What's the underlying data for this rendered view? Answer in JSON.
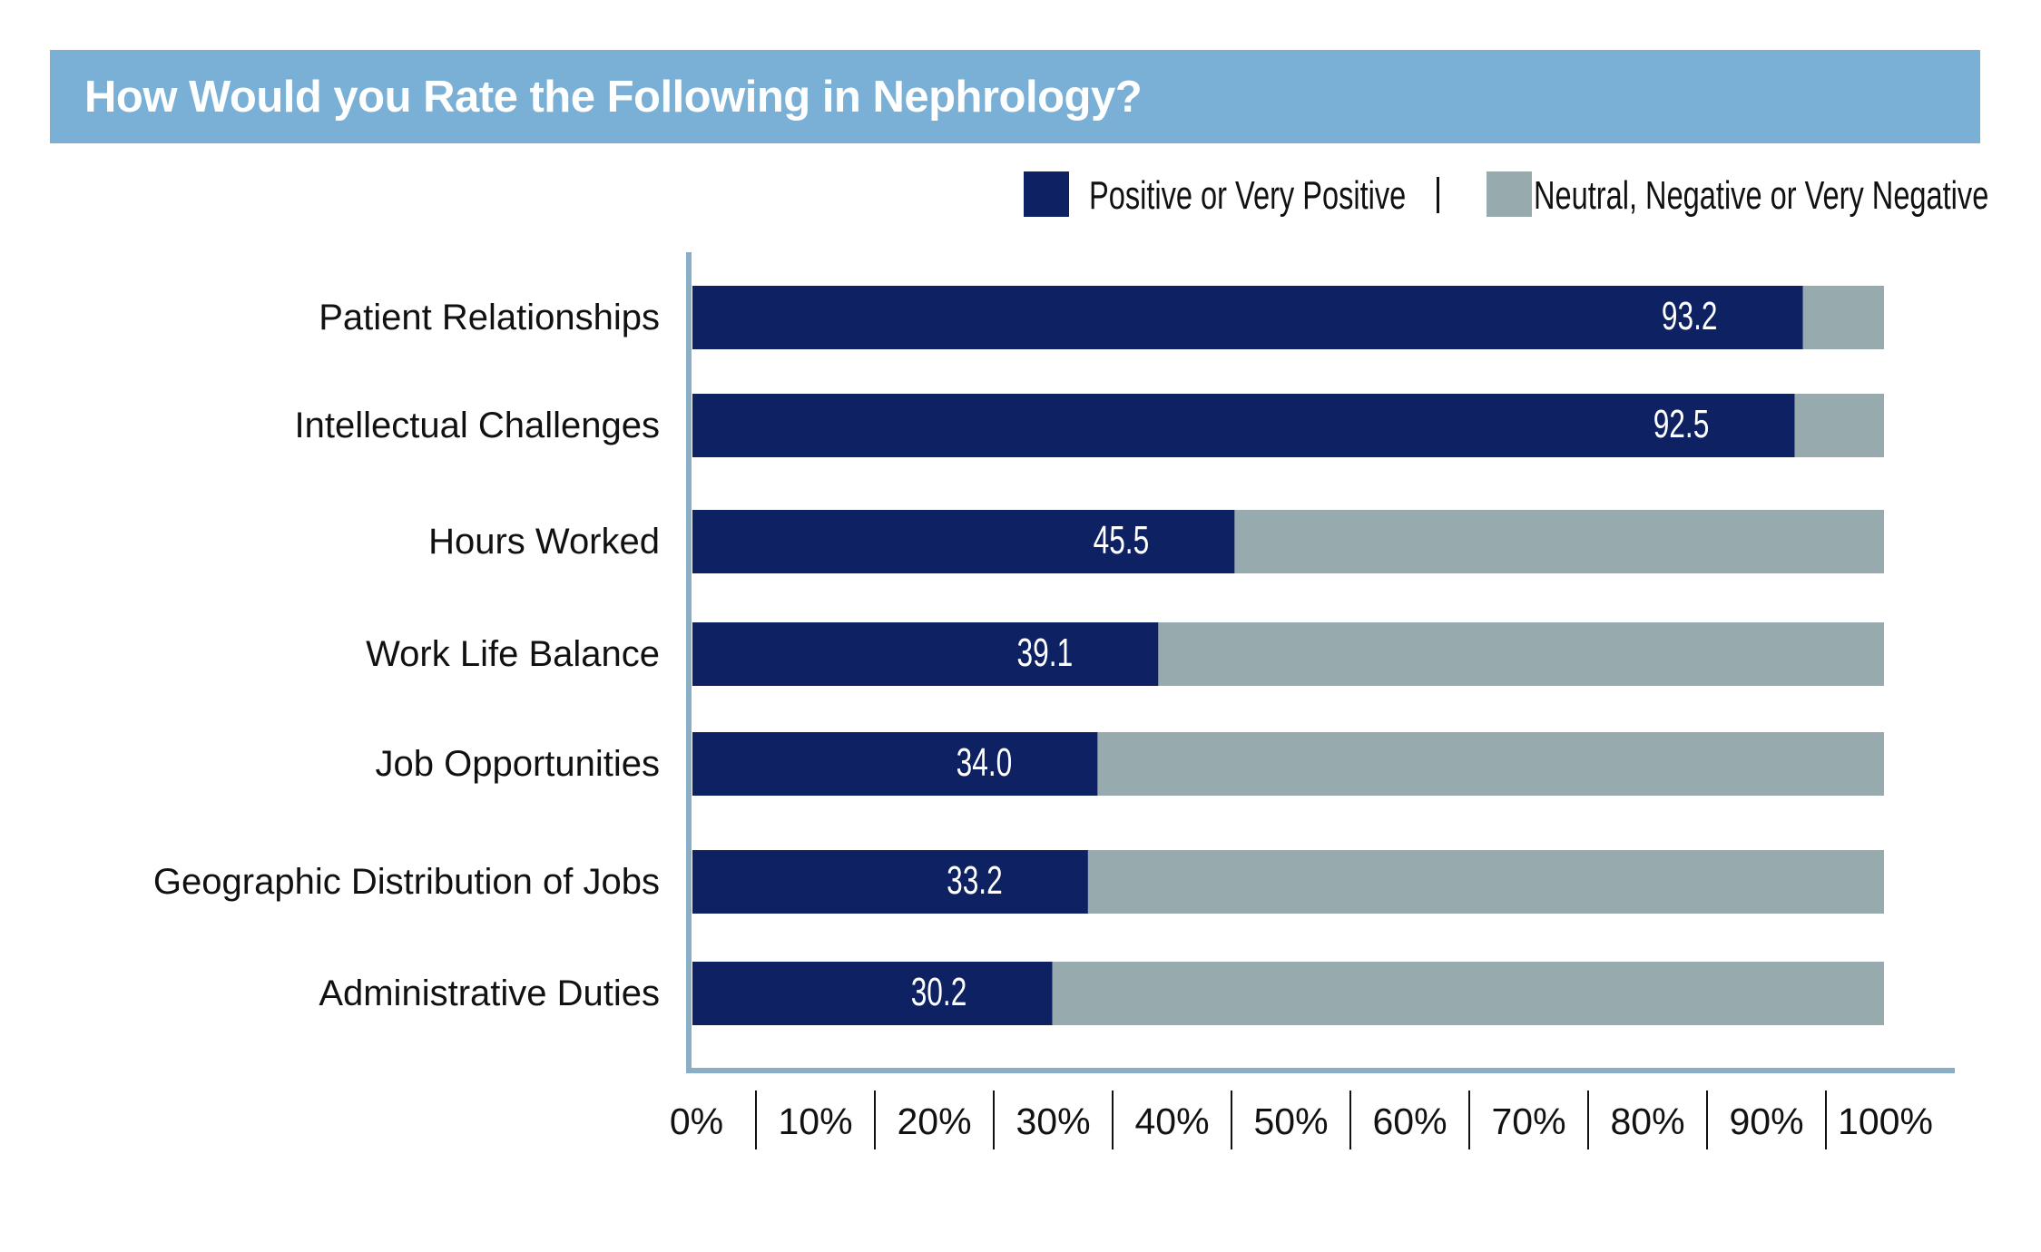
{
  "title": "How Would you Rate the Following in Nephrology?",
  "colors": {
    "title_bar": "#7AAFD6",
    "positive": "#0E2263",
    "negative": "#97AAAD",
    "axis": "#8AAEC6"
  },
  "legend": {
    "items": [
      {
        "label": "Positive or Very Positive",
        "color": "#0E2263"
      },
      {
        "label": "Neutral, Negative or Very Negative",
        "color": "#97AAAD"
      }
    ],
    "separator": "|"
  },
  "chart_data": {
    "type": "bar",
    "orientation": "horizontal",
    "stacked": true,
    "title": "How Would you Rate the Following in Nephrology?",
    "xlabel": "",
    "ylabel": "",
    "xlim": [
      0,
      100
    ],
    "grid": false,
    "legend_position": "top-right",
    "categories": [
      "Patient Relationships",
      "Intellectual Challenges",
      "Hours Worked",
      "Work Life Balance",
      "Job Opportunities",
      "Geographic Distribution of Jobs",
      "Administrative Duties"
    ],
    "series": [
      {
        "name": "Positive or Very Positive",
        "values": [
          93.2,
          92.5,
          45.5,
          39.1,
          34.0,
          33.2,
          30.2
        ]
      },
      {
        "name": "Neutral, Negative or Very Negative",
        "values": [
          6.8,
          7.5,
          54.5,
          60.9,
          66.0,
          66.8,
          69.8
        ]
      }
    ],
    "data_labels": [
      "93.2",
      "92.5",
      "45.5",
      "39.1",
      "34.0",
      "33.2",
      "30.2"
    ],
    "x_ticks": [
      0,
      10,
      20,
      30,
      40,
      50,
      60,
      70,
      80,
      90,
      100
    ],
    "x_tick_labels": [
      "0%",
      "10%",
      "20%",
      "30%",
      "40%",
      "50%",
      "60%",
      "70%",
      "80%",
      "90%",
      "100%"
    ]
  }
}
